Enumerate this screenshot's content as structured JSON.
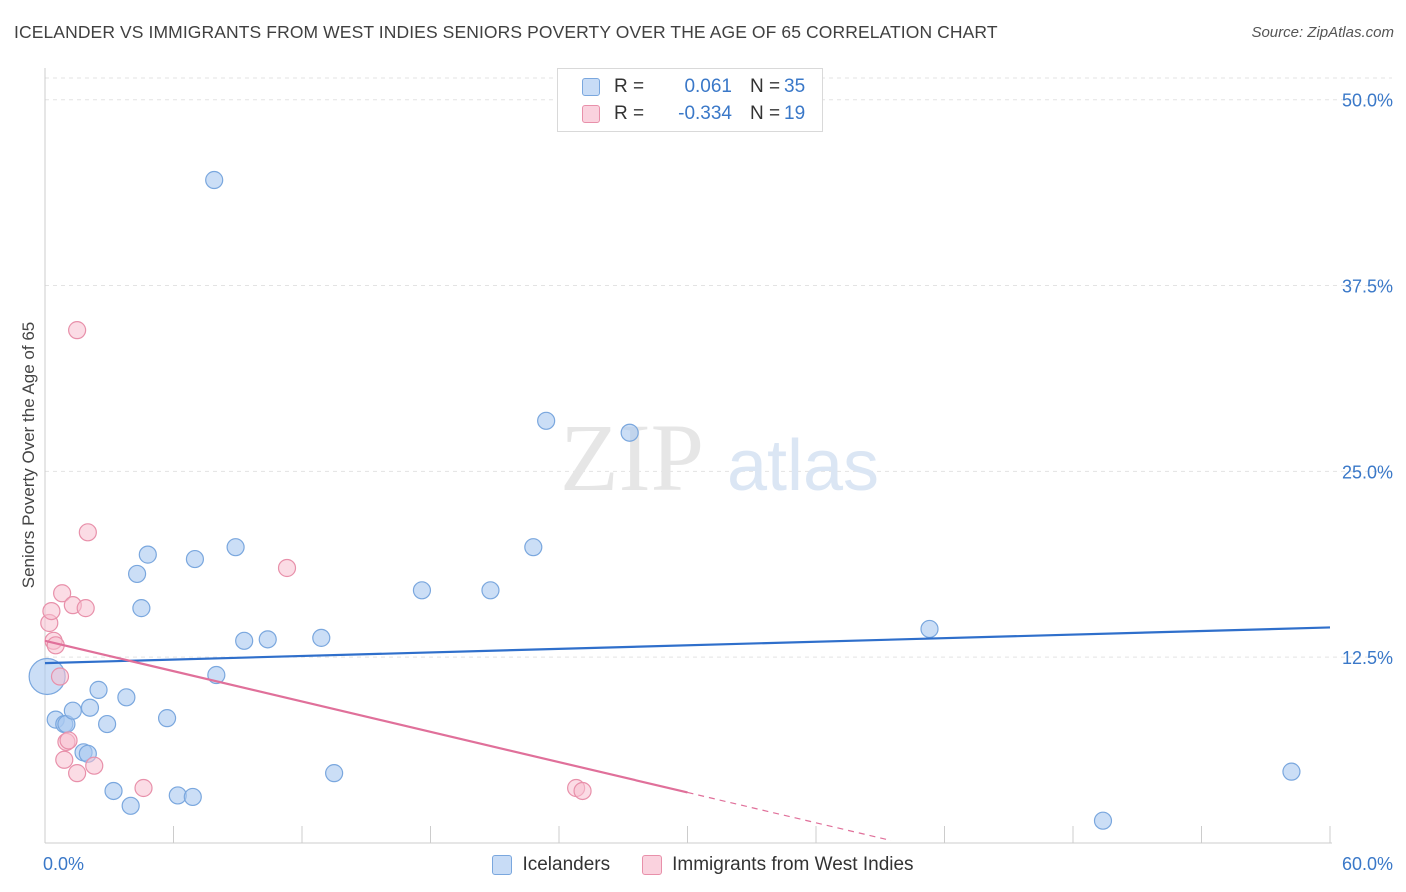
{
  "header": {
    "title": "ICELANDER VS IMMIGRANTS FROM WEST INDIES SENIORS POVERTY OVER THE AGE OF 65 CORRELATION CHART",
    "source": "Source: ZipAtlas.com"
  },
  "watermark": {
    "zip": "ZIP",
    "atlas": "atlas"
  },
  "legend": {
    "rows": [
      {
        "r_label": "R =",
        "r_value": "0.061",
        "n_label": "N =",
        "n_value": "35",
        "color": "#a8c8f0",
        "border": "#7aa7de"
      },
      {
        "r_label": "R =",
        "r_value": "-0.334",
        "n_label": "N =",
        "n_value": "19",
        "color": "#f8c0d0",
        "border": "#e890aa"
      }
    ]
  },
  "bottom_legend": {
    "items": [
      {
        "label": "Icelanders",
        "color": "#a8c8f0",
        "border": "#7aa7de"
      },
      {
        "label": "Immigrants from West Indies",
        "color": "#f8c0d0",
        "border": "#e890aa"
      }
    ]
  },
  "chart_data": {
    "type": "scatter",
    "title": "ICELANDER VS IMMIGRANTS FROM WEST INDIES SENIORS POVERTY OVER THE AGE OF 65 CORRELATION CHART",
    "xlabel": "",
    "ylabel": "Seniors Poverty Over the Age of 65",
    "xlim": [
      0,
      60
    ],
    "ylim": [
      0,
      52
    ],
    "x_tick_labels": [
      {
        "value": 0,
        "label": "0.0%"
      },
      {
        "value": 60,
        "label": "60.0%"
      }
    ],
    "y_tick_labels": [
      {
        "value": 12.5,
        "label": "12.5%"
      },
      {
        "value": 25,
        "label": "25.0%"
      },
      {
        "value": 37.5,
        "label": "37.5%"
      },
      {
        "value": 50,
        "label": "50.0%"
      }
    ],
    "series": [
      {
        "name": "Icelanders",
        "color": "#a8c8f0",
        "stroke": "#7aa7de",
        "trend_color": "#2f6fcb",
        "points": [
          [
            0.1,
            11.2
          ],
          [
            0.5,
            8.3
          ],
          [
            0.9,
            8.0
          ],
          [
            1.0,
            8.0
          ],
          [
            1.3,
            8.9
          ],
          [
            1.8,
            6.1
          ],
          [
            2.0,
            6.0
          ],
          [
            2.1,
            9.1
          ],
          [
            2.5,
            10.3
          ],
          [
            2.9,
            8.0
          ],
          [
            3.2,
            3.5
          ],
          [
            3.8,
            9.8
          ],
          [
            4.0,
            2.5
          ],
          [
            4.3,
            18.1
          ],
          [
            4.5,
            15.8
          ],
          [
            4.8,
            19.4
          ],
          [
            5.7,
            8.4
          ],
          [
            6.2,
            3.2
          ],
          [
            6.9,
            3.1
          ],
          [
            7.0,
            19.1
          ],
          [
            7.9,
            44.6
          ],
          [
            8.0,
            11.3
          ],
          [
            8.9,
            19.9
          ],
          [
            9.3,
            13.6
          ],
          [
            10.4,
            13.7
          ],
          [
            12.9,
            13.8
          ],
          [
            13.5,
            4.7
          ],
          [
            17.6,
            17.0
          ],
          [
            20.8,
            17.0
          ],
          [
            22.8,
            19.9
          ],
          [
            23.4,
            28.4
          ],
          [
            27.3,
            27.6
          ],
          [
            41.3,
            14.4
          ],
          [
            49.4,
            1.5
          ],
          [
            58.2,
            4.8
          ]
        ],
        "trend": {
          "x": [
            0,
            60
          ],
          "y": [
            12.1,
            14.5
          ],
          "dashed_from": null
        }
      },
      {
        "name": "Immigrants from West Indies",
        "color": "#f8c0d0",
        "stroke": "#e890aa",
        "trend_color": "#e0709a",
        "points": [
          [
            0.2,
            14.8
          ],
          [
            0.3,
            15.6
          ],
          [
            0.4,
            13.6
          ],
          [
            0.5,
            13.3
          ],
          [
            0.7,
            11.2
          ],
          [
            0.8,
            16.8
          ],
          [
            0.9,
            5.6
          ],
          [
            1.0,
            6.8
          ],
          [
            1.1,
            6.9
          ],
          [
            1.3,
            16.0
          ],
          [
            1.5,
            4.7
          ],
          [
            1.5,
            34.5
          ],
          [
            1.9,
            15.8
          ],
          [
            2.0,
            20.9
          ],
          [
            2.3,
            5.2
          ],
          [
            4.6,
            3.7
          ],
          [
            11.3,
            18.5
          ],
          [
            24.8,
            3.7
          ],
          [
            25.1,
            3.5
          ]
        ],
        "trend": {
          "x": [
            0,
            30
          ],
          "y": [
            13.6,
            3.4
          ],
          "dashed_from": 30,
          "dashed_to": 39.5
        }
      }
    ]
  }
}
